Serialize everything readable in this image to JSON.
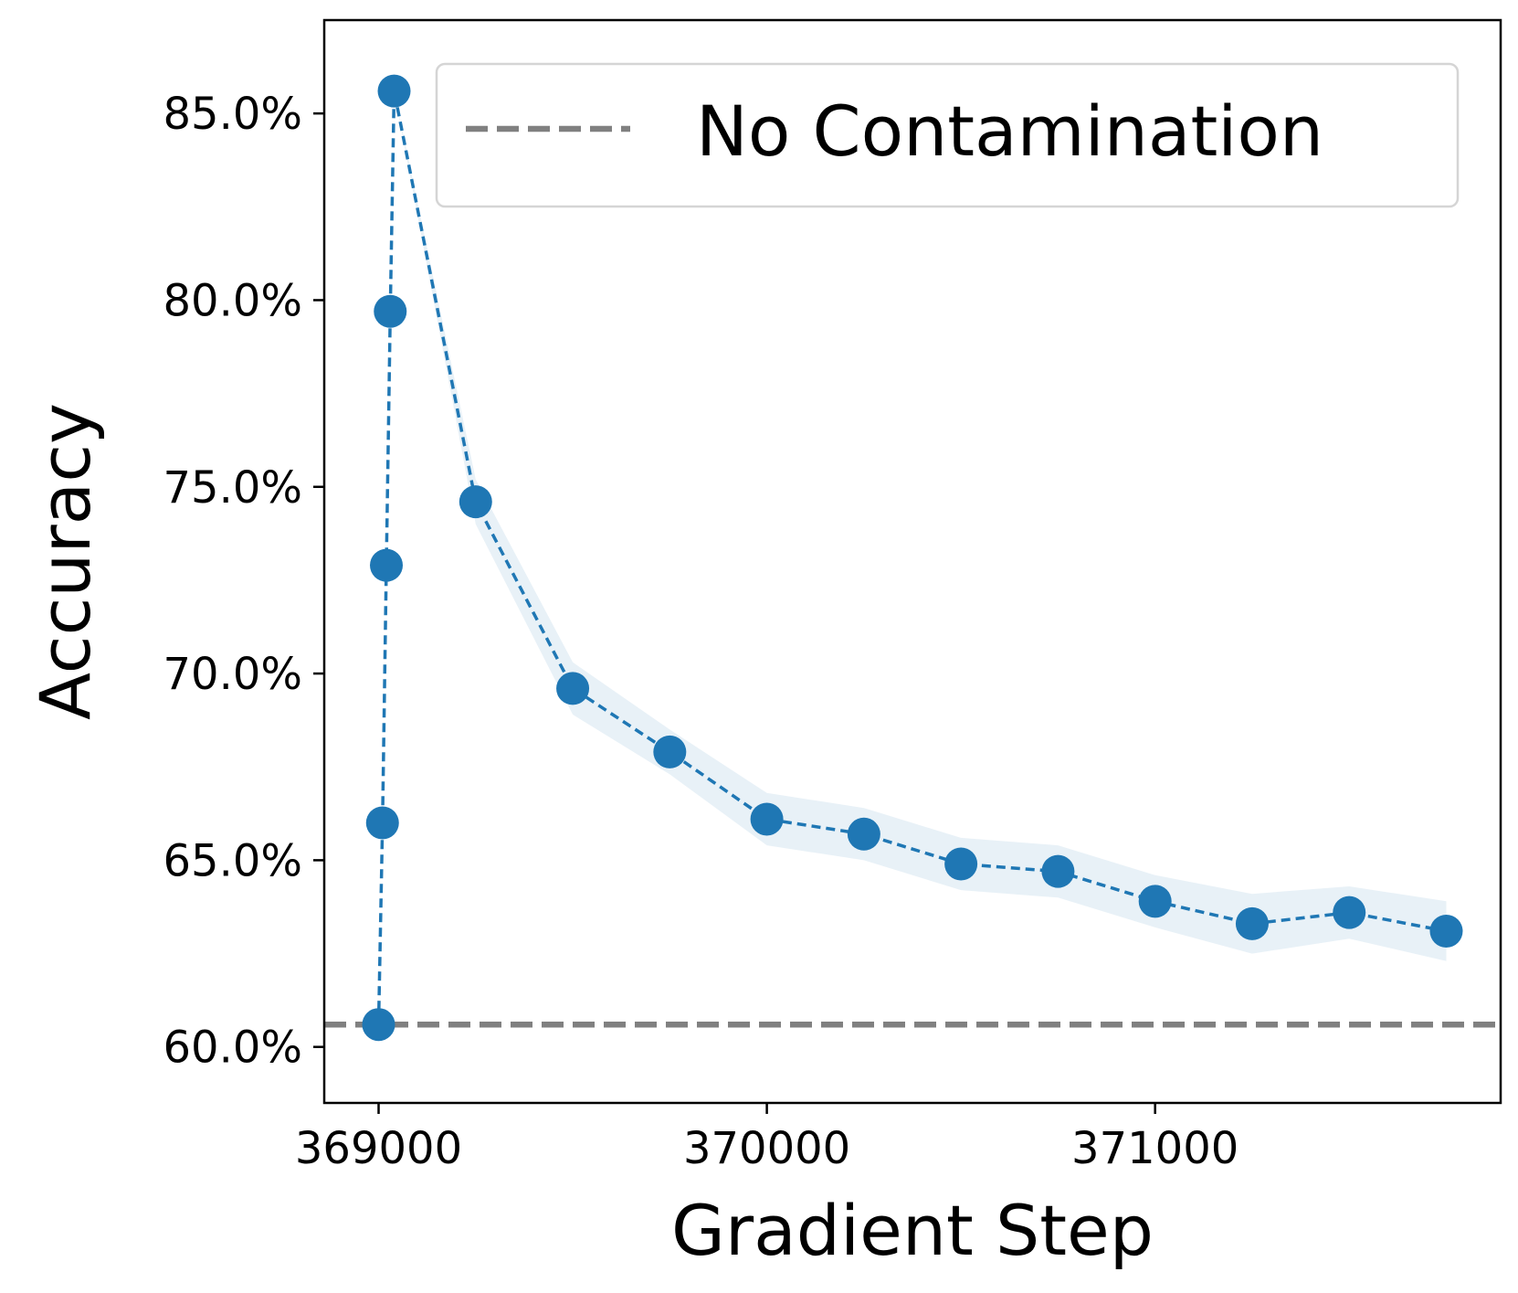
{
  "chart_data": {
    "type": "line",
    "xlabel": "Gradient Step",
    "ylabel": "Accuracy",
    "xlim": [
      368860,
      371890
    ],
    "ylim": [
      58.5,
      87.5
    ],
    "x_ticks": [
      369000,
      370000,
      371000
    ],
    "x_tick_labels": [
      "369000",
      "370000",
      "371000"
    ],
    "y_ticks": [
      60,
      65,
      70,
      75,
      80,
      85
    ],
    "y_tick_labels": [
      "60.0%",
      "65.0%",
      "70.0%",
      "75.0%",
      "80.0%",
      "85.0%"
    ],
    "grid": false,
    "legend_position": "top-right",
    "series": [
      {
        "color": "#1f77b4",
        "line_style": "dashed",
        "marker": "circle",
        "x": [
          369000,
          369010,
          369020,
          369030,
          369040,
          369250,
          369500,
          369750,
          370000,
          370250,
          370500,
          370750,
          371000,
          371250,
          371500,
          371750
        ],
        "y": [
          60.6,
          66.0,
          72.9,
          79.7,
          85.6,
          74.6,
          69.6,
          67.9,
          66.1,
          65.7,
          64.9,
          64.7,
          63.9,
          63.3,
          63.6,
          63.1
        ],
        "band_lower": [
          60.6,
          66.0,
          72.9,
          79.7,
          85.6,
          74.0,
          68.9,
          67.3,
          65.4,
          65.0,
          64.2,
          64.0,
          63.2,
          62.5,
          62.9,
          62.3
        ],
        "band_upper": [
          60.6,
          66.0,
          72.9,
          79.7,
          85.6,
          75.2,
          70.3,
          68.5,
          66.8,
          66.4,
          65.6,
          65.4,
          64.6,
          64.1,
          64.3,
          63.9
        ]
      }
    ],
    "reference_line": {
      "name": "No Contamination",
      "y": 60.6,
      "color": "#808080",
      "line_style": "dashed"
    }
  }
}
